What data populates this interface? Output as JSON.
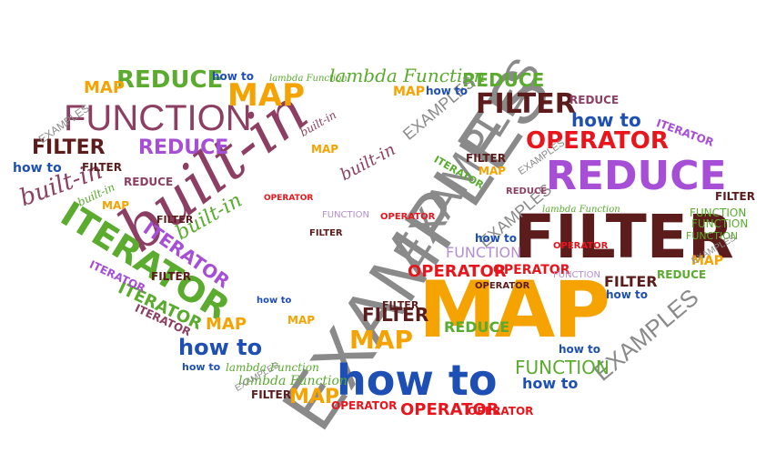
{
  "colors": {
    "orange": "#f5a300",
    "green": "#5aab2e",
    "purple": "#a64fd6",
    "plum": "#8c3f62",
    "maroon": "#5c1c1c",
    "red": "#e8161c",
    "blue": "#1e4fb5",
    "gray": "#8a8a8a",
    "lavender": "#b48fd0"
  },
  "words": {
    "examples_big": "EXAMPLES",
    "map_big": "MAP",
    "filter_big": "FILTER",
    "builtin_big": "built-in",
    "examples_diag": "EXAMPLES",
    "function_big": "FUNCTION",
    "reduce_big": "REDUCE",
    "howto_big": "how to",
    "iterator_big": "ITERATOR",
    "operator_1": "OPERATOR",
    "filter_2": "FILTER",
    "reduce_2": "REDUCE",
    "map_2": "MAP",
    "howto_2": "how to",
    "map_3": "MAP",
    "examples_3": "EXAMPLES",
    "function_2": "FUNCTION",
    "filter_3": "FILTER",
    "reduce_3": "REDUCE",
    "builtin_2": "built-in",
    "builtin_3": "built-in",
    "iterator_2": "ITERATOR",
    "iterator_3": "ITERATOR",
    "operator_2": "OPERATOR",
    "operator_3": "OPERATOR",
    "operator_4": "OPERATOR",
    "howto_3": "how to",
    "howto_4": "how to",
    "map_4": "MAP",
    "map_5": "MAP",
    "filter_4": "FILTER",
    "filter_5": "FILTER",
    "lambda_1": "lambda Function",
    "lambda_2": "lambda Function",
    "lambda_3": "lambda Function",
    "reduce_4": "REDUCE",
    "reduce_5": "REDUCE",
    "function_3": "FUNCTION",
    "examples_4": "EXAMPLES",
    "examples_5": "EXAMPLES",
    "howto_5": "how to",
    "howto_6": "how to",
    "map_6": "MAP",
    "filter_6": "FILTER",
    "builtin_4": "built-in",
    "iterator_4": "ITERATOR",
    "reduce_6": "REDUCE",
    "function_4": "FUNCTION",
    "operator_5": "OPERATOR",
    "howto_7": "how to",
    "filter_7": "FILTER",
    "map_7": "MAP",
    "examples_6": "EXAMPLES",
    "iterator_5": "ITERATOR",
    "iterator_6": "ITERATOR",
    "operator_6": "OPERATOR",
    "operator_7": "OPERATOR",
    "filter_8": "FILTER",
    "map_8": "MAP",
    "howto_8": "how to",
    "howto_9": "how to",
    "function_5": "FUNCTION",
    "map_9": "MAP",
    "reduce_7": "REDUCE",
    "filter_9": "FILTER",
    "howto_10": "how to",
    "operator_8": "OPERATOR",
    "function_6": "FUNCTION",
    "map_10": "MAP",
    "filter_10": "FILTER",
    "reduce_8": "REDUCE",
    "howto_11": "how to",
    "examples_7": "EXAMPLES",
    "function_7": "FUNCTION",
    "filter_11": "FILTER",
    "lambda_4": "lambda Function",
    "lambda_5": "lambda Function",
    "builtin_5": "built-in",
    "builtin_6": "built-in",
    "iterator_7": "ITERATOR",
    "map_11": "MAP",
    "filter_12": "FILTER",
    "operator_9": "OPERATOR",
    "howto_12": "how to",
    "examples_8": "EXAMPLES",
    "map_12": "MAP",
    "filter_13": "FILTER",
    "function_8": "FUNCTION",
    "reduce_9": "REDUCE",
    "examples_9": "EXAMPLES",
    "operator_10": "OPERATOR"
  }
}
